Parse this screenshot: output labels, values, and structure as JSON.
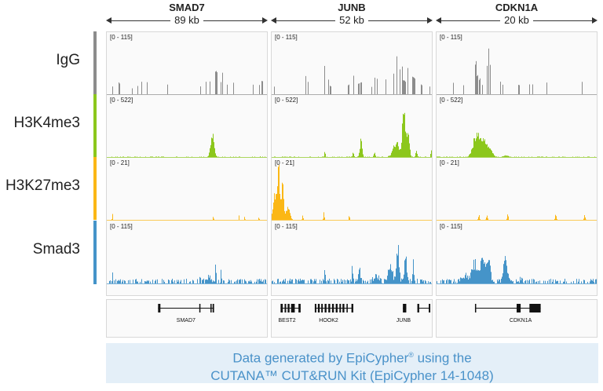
{
  "loci": [
    {
      "name": "SMAD7",
      "span_label": "89 kb",
      "span_kb": 89
    },
    {
      "name": "JUNB",
      "span_label": "52 kb",
      "span_kb": 52
    },
    {
      "name": "CDKN1A",
      "span_label": "20 kb",
      "span_kb": 20
    }
  ],
  "tracks": [
    {
      "name": "IgG",
      "color": "#8c8c8c",
      "range_label": "[0 - 115]",
      "max": 115
    },
    {
      "name": "H3K4me3",
      "color": "#8cc71c",
      "range_label": "[0 - 522]",
      "max": 522
    },
    {
      "name": "H3K27me3",
      "color": "#fbb715",
      "range_label": "[0 - 21]",
      "max": 21
    },
    {
      "name": "Smad3",
      "color": "#4594c9",
      "range_label": "[0 - 115]",
      "max": 115
    }
  ],
  "chart_data": {
    "type": "area",
    "x_unit": "kb",
    "peaks_format": "[position_kb, value, width_kb]",
    "signal": {
      "IgG": {
        "SMAD7": [
          [
            3.2,
            19,
            0.3
          ],
          [
            7,
            25,
            0.3
          ],
          [
            14.3,
            14,
            0.3
          ],
          [
            17.3,
            18,
            0.3
          ],
          [
            19.4,
            28,
            0.3
          ],
          [
            22.6,
            28,
            0.3
          ],
          [
            33.7,
            21,
            0.3
          ],
          [
            52,
            17,
            0.3
          ],
          [
            55.2,
            28,
            0.3
          ],
          [
            57.5,
            28,
            0.3
          ],
          [
            60.6,
            50,
            0.4
          ],
          [
            61.3,
            52,
            0.3
          ],
          [
            63.4,
            28,
            0.3
          ],
          [
            64.5,
            47,
            0.3
          ],
          [
            66.8,
            21,
            0.3
          ],
          [
            70.5,
            28,
            0.3
          ],
          [
            81.4,
            21,
            0.3
          ],
          [
            84.8,
            21,
            0.3
          ],
          [
            86.4,
            28,
            0.4
          ]
        ],
        "JUNB": [
          [
            0.8,
            18,
            0.3
          ],
          [
            11.1,
            42,
            0.2
          ],
          [
            11.9,
            28,
            0.2
          ],
          [
            17.3,
            62,
            0.2
          ],
          [
            18.5,
            31,
            0.2
          ],
          [
            19.1,
            18,
            0.3
          ],
          [
            25,
            21,
            0.2
          ],
          [
            26.7,
            42,
            0.2
          ],
          [
            28.2,
            25,
            0.5
          ],
          [
            29.1,
            28,
            0.5
          ],
          [
            32.4,
            18,
            0.2
          ],
          [
            33.6,
            37,
            0.3
          ],
          [
            34.2,
            33,
            0.2
          ],
          [
            37.1,
            34,
            0.2
          ],
          [
            39.6,
            50,
            0.2
          ],
          [
            40.7,
            86,
            0.2
          ],
          [
            41.7,
            57,
            0.2
          ],
          [
            42.4,
            60,
            0.2
          ],
          [
            43,
            30,
            1
          ],
          [
            44.3,
            59,
            0.2
          ],
          [
            45.9,
            37,
            0.3
          ],
          [
            46.4,
            37,
            0.2
          ],
          [
            48.7,
            21,
            0.2
          ],
          [
            51.3,
            18,
            0.3
          ]
        ],
        "CDKN1A": [
          [
            2.1,
            28,
            0.15
          ],
          [
            3.4,
            21,
            0.1
          ],
          [
            4.9,
            70,
            0.1
          ],
          [
            5.1,
            42,
            0.1
          ],
          [
            5.4,
            34,
            0.1
          ],
          [
            5.7,
            21,
            0.1
          ],
          [
            6.3,
            60,
            0.1
          ],
          [
            6.5,
            101,
            0.1
          ],
          [
            6.7,
            65,
            0.1
          ],
          [
            8,
            28,
            0.1
          ],
          [
            8.3,
            21,
            0.1
          ],
          [
            10.3,
            21,
            0.1
          ],
          [
            11.6,
            21,
            0.1
          ],
          [
            12,
            21,
            0.1
          ],
          [
            13.8,
            28,
            0.1
          ],
          [
            18.2,
            28,
            0.1
          ]
        ]
      },
      "H3K4me3": {
        "SMAD7": [
          [
            58.6,
            228,
            1.8
          ],
          [
            85.4,
            10,
            0.3
          ]
        ],
        "JUNB": [
          [
            17.3,
            60,
            0.3
          ],
          [
            26.5,
            55,
            0.4
          ],
          [
            29,
            150,
            0.7
          ],
          [
            33.4,
            40,
            0.5
          ],
          [
            40.5,
            130,
            2
          ],
          [
            43,
            472,
            1
          ],
          [
            44.4,
            200,
            0.8
          ],
          [
            47,
            60,
            0.5
          ],
          [
            51.8,
            70,
            0.3
          ]
        ],
        "CDKN1A": [
          [
            5,
            222,
            0.8
          ],
          [
            6,
            170,
            0.7
          ],
          [
            6.8,
            70,
            0.5
          ],
          [
            8.6,
            15,
            0.6
          ]
        ]
      },
      "H3K27me3": {
        "SMAD7": [
          [
            3.2,
            2,
            0.4
          ],
          [
            59.3,
            2,
            0.3
          ],
          [
            73.5,
            1.5,
            0.3
          ],
          [
            76.7,
            1.5,
            0.3
          ],
          [
            84.6,
            1.5,
            0.3
          ]
        ],
        "JUNB": [
          [
            1.3,
            10,
            1.5
          ],
          [
            2.3,
            19,
            0.6
          ],
          [
            3.5,
            13,
            0.8
          ],
          [
            5.3,
            5,
            1.2
          ],
          [
            10.1,
            1.5,
            0.3
          ],
          [
            17,
            3,
            0.3
          ],
          [
            25.2,
            1.5,
            0.3
          ]
        ],
        "CDKN1A": [
          [
            5.3,
            2,
            0.15
          ],
          [
            6.3,
            2,
            0.15
          ],
          [
            8.9,
            2,
            0.15
          ],
          [
            14.9,
            2,
            0.15
          ],
          [
            18.5,
            2,
            0.15
          ]
        ]
      },
      "Smad3": {
        "SMAD7": [
          [
            3.2,
            26,
            0.3
          ],
          [
            52,
            15,
            0.4
          ],
          [
            60.5,
            45,
            0.5
          ],
          [
            63.5,
            20,
            0.4
          ],
          [
            57,
            12,
            2
          ]
        ],
        "JUNB": [
          [
            17.3,
            38,
            0.2
          ],
          [
            26.2,
            40,
            0.3
          ],
          [
            28.5,
            30,
            0.6
          ],
          [
            34,
            15,
            1.5
          ],
          [
            38.5,
            30,
            1.5
          ],
          [
            41,
            73,
            0.8
          ],
          [
            43.5,
            55,
            0.8
          ],
          [
            46,
            37,
            0.4
          ]
        ],
        "CDKN1A": [
          [
            4.8,
            40,
            0.7
          ],
          [
            5.8,
            55,
            0.5
          ],
          [
            6.5,
            50,
            0.4
          ],
          [
            8.6,
            46,
            0.5
          ],
          [
            3.5,
            14,
            0.8
          ],
          [
            10.6,
            8,
            0.3
          ]
        ]
      }
    }
  },
  "genes": {
    "SMAD7": [
      {
        "label": "SMAD7",
        "start": 28.5,
        "end": 59.6,
        "label_at": 44,
        "exons": [
          [
            28.5,
            29.8
          ],
          [
            51.4,
            51.8
          ],
          [
            57.6,
            58.2
          ],
          [
            58.8,
            59.6
          ]
        ]
      }
    ],
    "JUNB": [
      {
        "label": "BEST2",
        "start": 2.9,
        "end": 9.4,
        "label_at": 5,
        "exons": [
          [
            2.9,
            3.6
          ],
          [
            4.2,
            4.7
          ],
          [
            5.2,
            5.8
          ],
          [
            6.3,
            7.5
          ],
          [
            8.7,
            9.4
          ]
        ]
      },
      {
        "label": "HOOK2",
        "start": 14,
        "end": 26.5,
        "label_at": 18.5,
        "exons": [
          [
            14,
            14.5
          ],
          [
            15,
            15.6
          ],
          [
            16.1,
            16.6
          ],
          [
            17.2,
            17.8
          ],
          [
            18.4,
            19
          ],
          [
            19.6,
            20.2
          ],
          [
            20.8,
            21.4
          ],
          [
            22,
            22.5
          ],
          [
            23,
            23.6
          ],
          [
            24.3,
            24.7
          ],
          [
            25.9,
            26.5
          ]
        ]
      },
      {
        "label": "JUNB",
        "start": 42.6,
        "end": 43.7,
        "label_at": 42.8,
        "exons": [
          [
            42.6,
            43.7
          ]
        ]
      },
      {
        "label": "",
        "start": 47.3,
        "end": 51.5,
        "label_at": null,
        "exons": [
          [
            47.3,
            47.9
          ],
          [
            51,
            51.5
          ]
        ]
      }
    ],
    "CDKN1A": [
      {
        "label": "CDKN1A",
        "start": 4.8,
        "end": 13,
        "label_at": 10.5,
        "exons": [
          [
            4.8,
            4.9
          ],
          [
            10,
            10.5
          ],
          [
            11.6,
            13
          ]
        ]
      }
    ]
  },
  "footer": {
    "line1_a": "Data generated by EpiCypher",
    "line1_sup": "®",
    "line1_b": " using the",
    "line2": "CUTANA™ CUT&RUN Kit (EpiCypher 14-1048)"
  }
}
